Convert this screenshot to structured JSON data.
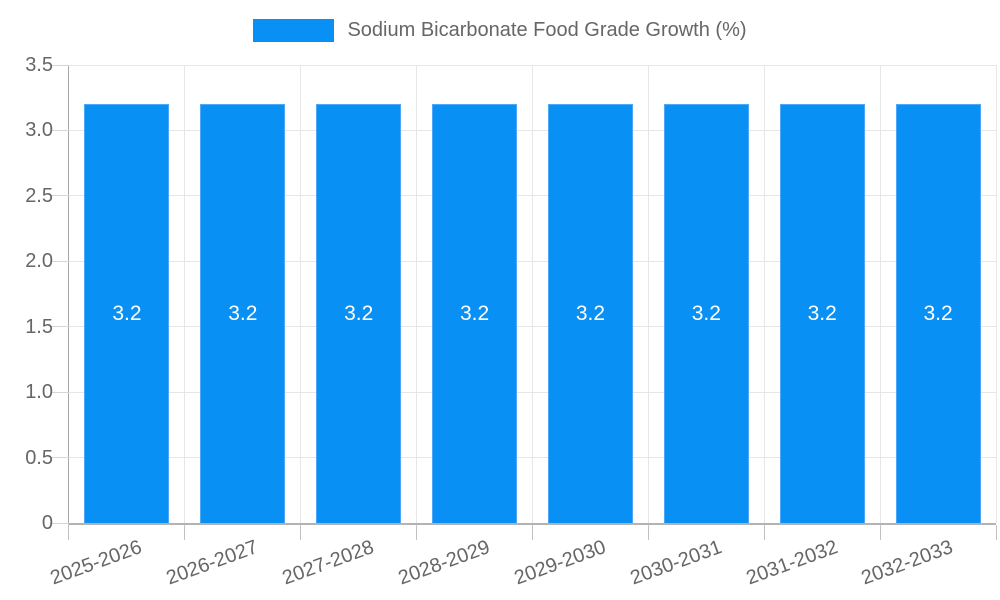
{
  "legend": {
    "label": "Sodium Bicarbonate Food Grade Growth (%)",
    "swatch_color": "#0890F5"
  },
  "chart_data": {
    "type": "bar",
    "title": "Sodium Bicarbonate Food Grade Growth (%)",
    "categories": [
      "2025-2026",
      "2026-2027",
      "2027-2028",
      "2028-2029",
      "2029-2030",
      "2030-2031",
      "2031-2032",
      "2032-2033"
    ],
    "values": [
      3.2,
      3.2,
      3.2,
      3.2,
      3.2,
      3.2,
      3.2,
      3.2
    ],
    "data_labels": [
      "3.2",
      "3.2",
      "3.2",
      "3.2",
      "3.2",
      "3.2",
      "3.2",
      "3.2"
    ],
    "xlabel": "",
    "ylabel": "",
    "ylim": [
      0,
      3.5
    ],
    "ytick_step": 0.5,
    "ytick_labels": [
      "0",
      "0.5",
      "1.0",
      "1.5",
      "2.0",
      "2.5",
      "3.0",
      "3.5"
    ],
    "grid": true,
    "legend_position": "top-center",
    "x_label_rotation_deg": -20,
    "colors": {
      "bar_fill": "#0890F5",
      "bar_border": "#4EA8F7",
      "bar_value_text": "#FFFFFF",
      "axis_text": "#666666",
      "gridline": "#E6E6E6",
      "axis_line": "#A6A6A6"
    }
  }
}
